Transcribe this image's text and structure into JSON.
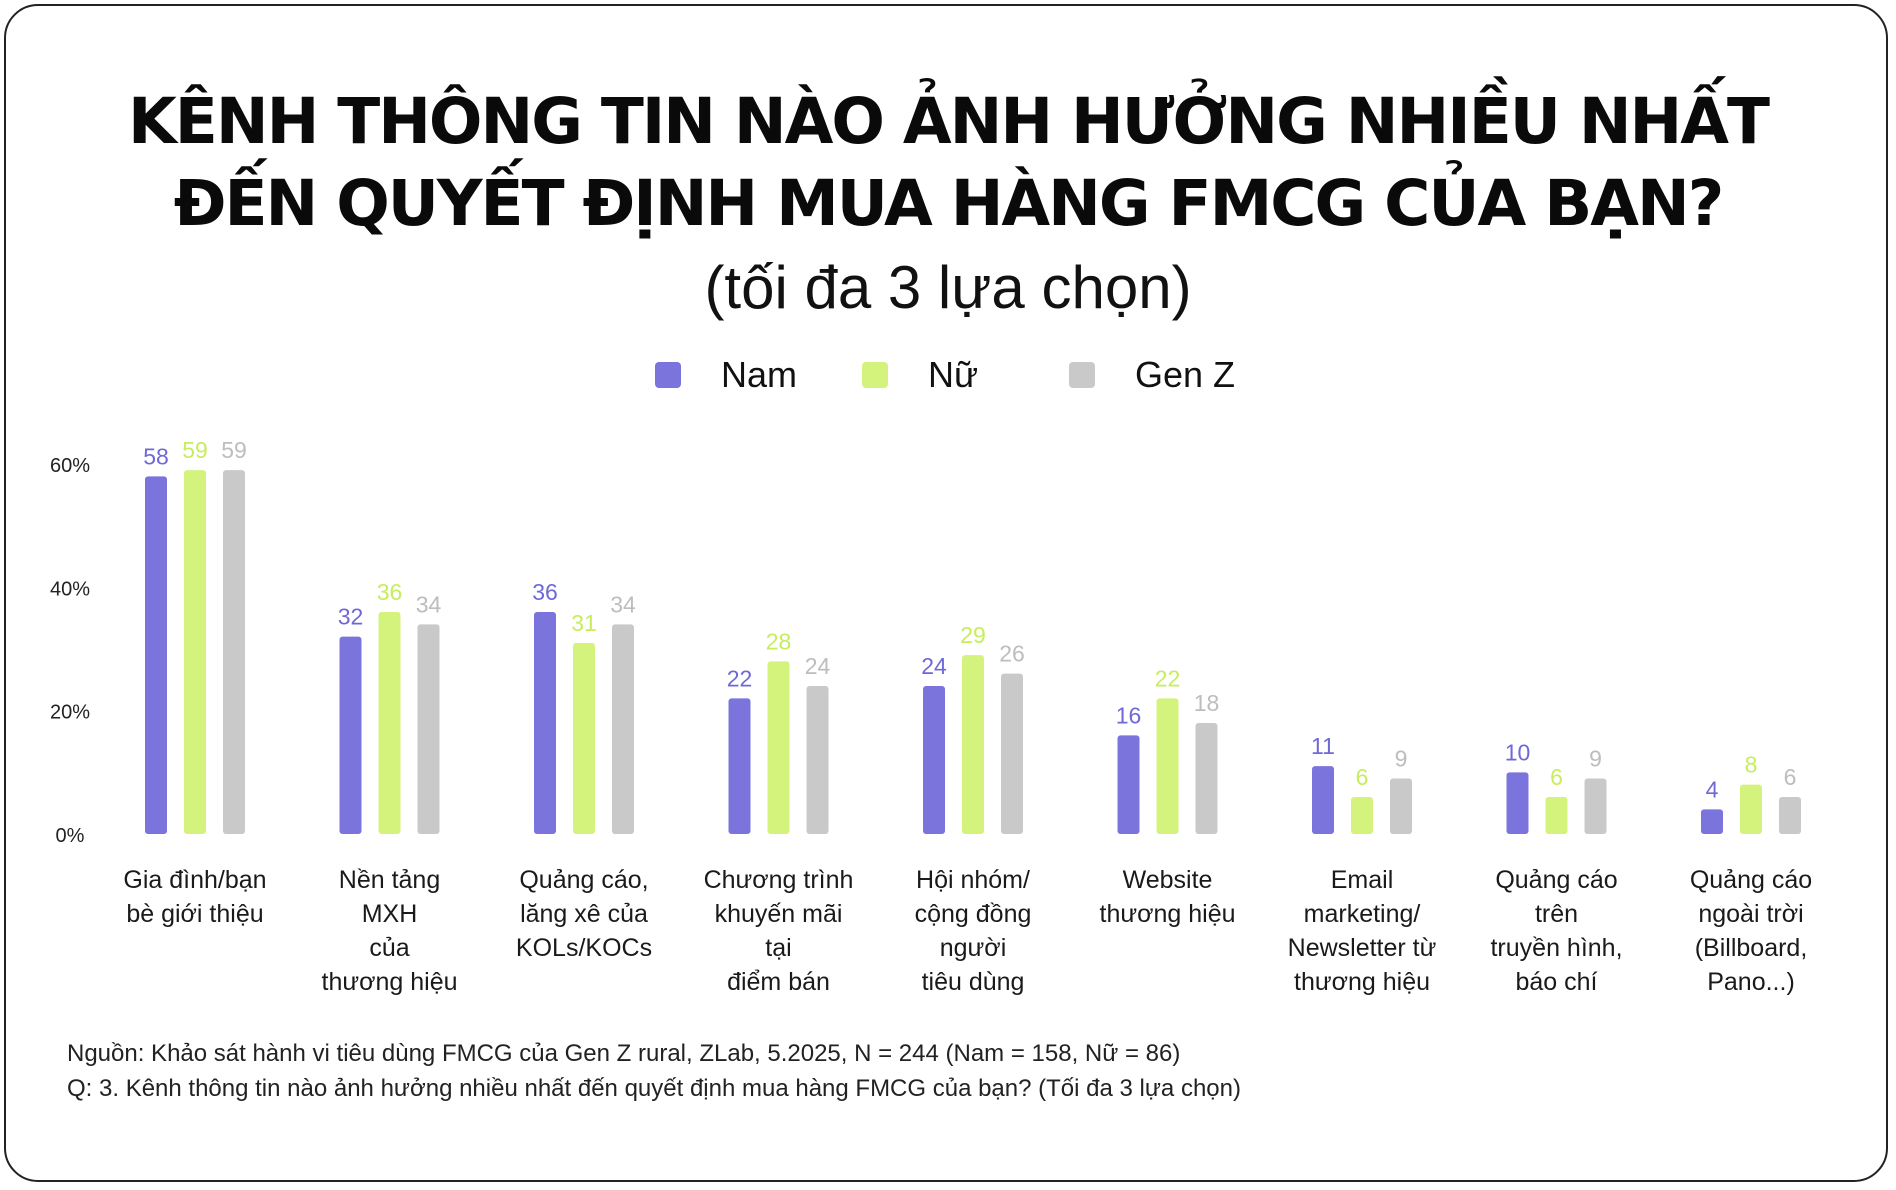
{
  "title_line1": "KÊNH THÔNG TIN NÀO ẢNH HƯỞNG NHIỀU NHẤT",
  "title_line2": "ĐẾN QUYẾT ĐỊNH MUA HÀNG FMCG CỦA BẠN?",
  "subtitle": "(tối đa 3 lựa chọn)",
  "source_line1": "Nguồn: Khảo sát hành vi tiêu dùng FMCG của Gen Z rural, ZLab, 5.2025, N = 244 (Nam = 158, Nữ = 86)",
  "source_line2": "Q: 3. Kênh thông tin nào ảnh hưởng nhiều nhất đến quyết định mua hàng FMCG của bạn? (Tối đa 3 lựa chọn)",
  "colors": {
    "nam": "#7b74dc",
    "nu": "#d4f37d",
    "genz": "#c9c9c9",
    "axis_text": "#222222"
  },
  "chart_data": {
    "type": "bar",
    "categories": [
      [
        "Gia đình/bạn",
        "bè giới thiệu"
      ],
      [
        "Nền tảng",
        "MXH",
        "của",
        "thương hiệu"
      ],
      [
        "Quảng cáo,",
        "lăng xê của",
        "KOLs/KOCs"
      ],
      [
        "Chương trình",
        "khuyến mãi",
        "tại",
        "điểm bán"
      ],
      [
        "Hội nhóm/",
        "cộng đồng",
        "người",
        "tiêu dùng"
      ],
      [
        "Website",
        "thương hiệu"
      ],
      [
        "Email",
        "marketing/",
        "Newsletter từ",
        "thương hiệu"
      ],
      [
        "Quảng cáo",
        "trên",
        "truyền hình,",
        "báo chí"
      ],
      [
        "Quảng cáo",
        "ngoài trời",
        "(Billboard,",
        "Pano...)"
      ]
    ],
    "series": [
      {
        "name": "Nam",
        "color": "#7b74dc",
        "values": [
          58,
          32,
          36,
          22,
          24,
          16,
          11,
          10,
          4
        ]
      },
      {
        "name": "Nữ",
        "color": "#d4f37d",
        "values": [
          59,
          36,
          31,
          28,
          29,
          22,
          6,
          6,
          8
        ]
      },
      {
        "name": "Gen Z",
        "color": "#c9c9c9",
        "values": [
          59,
          34,
          34,
          24,
          26,
          18,
          9,
          9,
          6
        ]
      }
    ],
    "ylim": [
      0,
      60
    ],
    "yticks": [
      0,
      20,
      40,
      60
    ],
    "ytick_labels": [
      "0%",
      "20%",
      "40%",
      "60%"
    ],
    "legend_position": "top-center",
    "grid": false
  }
}
